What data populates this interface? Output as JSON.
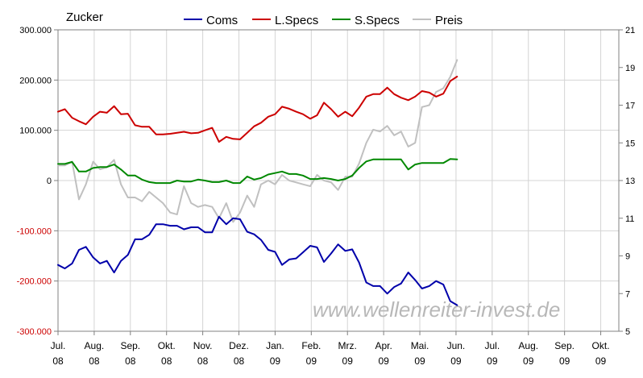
{
  "watermark": "www.wellenreiter-invest.de",
  "chart_data": {
    "type": "line",
    "title": "Zucker",
    "x_ticks": [
      {
        "label": [
          "Jul.",
          "08"
        ],
        "t": 0
      },
      {
        "label": [
          "Aug.",
          "08"
        ],
        "t": 1
      },
      {
        "label": [
          "Sep.",
          "08"
        ],
        "t": 2
      },
      {
        "label": [
          "Okt.",
          "08"
        ],
        "t": 3
      },
      {
        "label": [
          "Nov.",
          "08"
        ],
        "t": 4
      },
      {
        "label": [
          "Dez.",
          "08"
        ],
        "t": 5
      },
      {
        "label": [
          "Jan.",
          "09"
        ],
        "t": 6
      },
      {
        "label": [
          "Feb.",
          "09"
        ],
        "t": 7
      },
      {
        "label": [
          "Mrz.",
          "09"
        ],
        "t": 8
      },
      {
        "label": [
          "Apr.",
          "09"
        ],
        "t": 9
      },
      {
        "label": [
          "Mai.",
          "09"
        ],
        "t": 10
      },
      {
        "label": [
          "Jun.",
          "09"
        ],
        "t": 11
      },
      {
        "label": [
          "Jul.",
          "09"
        ],
        "t": 12
      },
      {
        "label": [
          "Aug.",
          "09"
        ],
        "t": 13
      },
      {
        "label": [
          "Sep.",
          "09"
        ],
        "t": 14
      },
      {
        "label": [
          "Okt.",
          "09"
        ],
        "t": 15
      }
    ],
    "y_left": {
      "ticks": [
        300000,
        200000,
        100000,
        0,
        -100000,
        -200000,
        -300000
      ],
      "tick_labels": [
        "300.000",
        "200.000",
        "100.000",
        "0",
        "-100.000",
        "-200.000",
        "-300.000"
      ],
      "range": [
        -300000,
        300000
      ]
    },
    "y_right": {
      "ticks": [
        21,
        19,
        17,
        15,
        13,
        11,
        9,
        7,
        5
      ],
      "tick_labels": [
        "21",
        "19",
        "17",
        "15",
        "13",
        "11",
        "9",
        "7",
        "5"
      ],
      "range": [
        5,
        21
      ]
    },
    "legend_position": "top",
    "series": [
      {
        "name": "Coms",
        "color": "#0000aa",
        "axis": "left",
        "points": [
          [
            0.0,
            -168000
          ],
          [
            0.19,
            -175000
          ],
          [
            0.39,
            -165000
          ],
          [
            0.58,
            -138000
          ],
          [
            0.77,
            -132000
          ],
          [
            0.97,
            -153000
          ],
          [
            1.16,
            -165000
          ],
          [
            1.35,
            -160000
          ],
          [
            1.55,
            -183000
          ],
          [
            1.74,
            -160000
          ],
          [
            1.93,
            -148000
          ],
          [
            2.13,
            -117000
          ],
          [
            2.32,
            -117000
          ],
          [
            2.52,
            -108000
          ],
          [
            2.71,
            -87000
          ],
          [
            2.9,
            -87000
          ],
          [
            3.1,
            -90000
          ],
          [
            3.29,
            -90000
          ],
          [
            3.48,
            -97000
          ],
          [
            3.68,
            -93000
          ],
          [
            3.87,
            -93000
          ],
          [
            4.06,
            -103000
          ],
          [
            4.26,
            -103000
          ],
          [
            4.45,
            -72000
          ],
          [
            4.65,
            -87000
          ],
          [
            4.84,
            -75000
          ],
          [
            5.03,
            -77000
          ],
          [
            5.23,
            -102000
          ],
          [
            5.42,
            -107000
          ],
          [
            5.61,
            -118000
          ],
          [
            5.81,
            -138000
          ],
          [
            6.0,
            -142000
          ],
          [
            6.19,
            -168000
          ],
          [
            6.39,
            -157000
          ],
          [
            6.58,
            -155000
          ],
          [
            6.77,
            -143000
          ],
          [
            6.97,
            -130000
          ],
          [
            7.16,
            -133000
          ],
          [
            7.35,
            -162000
          ],
          [
            7.55,
            -145000
          ],
          [
            7.74,
            -127000
          ],
          [
            7.94,
            -140000
          ],
          [
            8.13,
            -137000
          ],
          [
            8.32,
            -163000
          ],
          [
            8.52,
            -203000
          ],
          [
            8.71,
            -210000
          ],
          [
            8.9,
            -210000
          ],
          [
            9.1,
            -225000
          ],
          [
            9.29,
            -212000
          ],
          [
            9.48,
            -205000
          ],
          [
            9.68,
            -183000
          ],
          [
            9.87,
            -198000
          ],
          [
            10.06,
            -215000
          ],
          [
            10.26,
            -210000
          ],
          [
            10.45,
            -200000
          ],
          [
            10.65,
            -207000
          ],
          [
            10.84,
            -240000
          ],
          [
            11.03,
            -248000
          ]
        ]
      },
      {
        "name": "L.Specs",
        "color": "#cc0000",
        "axis": "left",
        "points": [
          [
            0.0,
            137000
          ],
          [
            0.19,
            142000
          ],
          [
            0.39,
            125000
          ],
          [
            0.58,
            118000
          ],
          [
            0.77,
            112000
          ],
          [
            0.97,
            127000
          ],
          [
            1.16,
            137000
          ],
          [
            1.35,
            135000
          ],
          [
            1.55,
            148000
          ],
          [
            1.74,
            132000
          ],
          [
            1.93,
            133000
          ],
          [
            2.13,
            110000
          ],
          [
            2.32,
            107000
          ],
          [
            2.52,
            107000
          ],
          [
            2.71,
            92000
          ],
          [
            2.9,
            92000
          ],
          [
            3.1,
            93000
          ],
          [
            3.29,
            95000
          ],
          [
            3.48,
            97000
          ],
          [
            3.68,
            94000
          ],
          [
            3.87,
            95000
          ],
          [
            4.06,
            100000
          ],
          [
            4.26,
            105000
          ],
          [
            4.45,
            77000
          ],
          [
            4.65,
            87000
          ],
          [
            4.84,
            83000
          ],
          [
            5.03,
            82000
          ],
          [
            5.23,
            95000
          ],
          [
            5.42,
            108000
          ],
          [
            5.61,
            115000
          ],
          [
            5.81,
            127000
          ],
          [
            6.0,
            132000
          ],
          [
            6.19,
            147000
          ],
          [
            6.39,
            143000
          ],
          [
            6.58,
            137000
          ],
          [
            6.77,
            132000
          ],
          [
            6.97,
            123000
          ],
          [
            7.16,
            130000
          ],
          [
            7.35,
            155000
          ],
          [
            7.55,
            142000
          ],
          [
            7.74,
            127000
          ],
          [
            7.94,
            137000
          ],
          [
            8.13,
            128000
          ],
          [
            8.32,
            145000
          ],
          [
            8.52,
            167000
          ],
          [
            8.71,
            172000
          ],
          [
            8.9,
            172000
          ],
          [
            9.1,
            185000
          ],
          [
            9.29,
            172000
          ],
          [
            9.48,
            165000
          ],
          [
            9.68,
            160000
          ],
          [
            9.87,
            167000
          ],
          [
            10.06,
            178000
          ],
          [
            10.26,
            175000
          ],
          [
            10.45,
            167000
          ],
          [
            10.65,
            173000
          ],
          [
            10.84,
            198000
          ],
          [
            11.03,
            207000
          ]
        ]
      },
      {
        "name": "S.Specs",
        "color": "#008800",
        "axis": "left",
        "points": [
          [
            0.0,
            33000
          ],
          [
            0.19,
            33000
          ],
          [
            0.39,
            37000
          ],
          [
            0.58,
            18000
          ],
          [
            0.77,
            18000
          ],
          [
            0.97,
            25000
          ],
          [
            1.16,
            27000
          ],
          [
            1.35,
            27000
          ],
          [
            1.55,
            32000
          ],
          [
            1.74,
            22000
          ],
          [
            1.93,
            10000
          ],
          [
            2.13,
            10000
          ],
          [
            2.32,
            2000
          ],
          [
            2.52,
            -3000
          ],
          [
            2.71,
            -5000
          ],
          [
            2.9,
            -5000
          ],
          [
            3.1,
            -5000
          ],
          [
            3.29,
            0
          ],
          [
            3.48,
            -2000
          ],
          [
            3.68,
            -2000
          ],
          [
            3.87,
            2000
          ],
          [
            4.06,
            0
          ],
          [
            4.26,
            -3000
          ],
          [
            4.45,
            -3000
          ],
          [
            4.65,
            0
          ],
          [
            4.84,
            -5000
          ],
          [
            5.03,
            -5000
          ],
          [
            5.23,
            8000
          ],
          [
            5.42,
            2000
          ],
          [
            5.61,
            5000
          ],
          [
            5.81,
            12000
          ],
          [
            6.0,
            15000
          ],
          [
            6.19,
            18000
          ],
          [
            6.39,
            13000
          ],
          [
            6.58,
            13000
          ],
          [
            6.77,
            10000
          ],
          [
            6.97,
            3000
          ],
          [
            7.16,
            3000
          ],
          [
            7.35,
            5000
          ],
          [
            7.55,
            3000
          ],
          [
            7.74,
            0
          ],
          [
            7.94,
            3000
          ],
          [
            8.13,
            10000
          ],
          [
            8.32,
            25000
          ],
          [
            8.52,
            38000
          ],
          [
            8.71,
            42000
          ],
          [
            8.9,
            42000
          ],
          [
            9.1,
            42000
          ],
          [
            9.29,
            42000
          ],
          [
            9.48,
            42000
          ],
          [
            9.68,
            22000
          ],
          [
            9.87,
            32000
          ],
          [
            10.06,
            35000
          ],
          [
            10.26,
            35000
          ],
          [
            10.45,
            35000
          ],
          [
            10.65,
            35000
          ],
          [
            10.84,
            43000
          ],
          [
            11.03,
            42000
          ]
        ]
      },
      {
        "name": "Preis",
        "color": "#c0c0c0",
        "axis": "right",
        "points": [
          [
            0.0,
            13.8
          ],
          [
            0.19,
            13.8
          ],
          [
            0.39,
            14.0
          ],
          [
            0.58,
            12.0
          ],
          [
            0.77,
            12.8
          ],
          [
            0.97,
            14.0
          ],
          [
            1.16,
            13.6
          ],
          [
            1.35,
            13.7
          ],
          [
            1.55,
            14.1
          ],
          [
            1.74,
            12.8
          ],
          [
            1.93,
            12.1
          ],
          [
            2.13,
            12.1
          ],
          [
            2.32,
            11.9
          ],
          [
            2.52,
            12.4
          ],
          [
            2.71,
            12.1
          ],
          [
            2.9,
            11.8
          ],
          [
            3.1,
            11.3
          ],
          [
            3.29,
            11.2
          ],
          [
            3.48,
            12.7
          ],
          [
            3.68,
            11.8
          ],
          [
            3.87,
            11.6
          ],
          [
            4.06,
            11.7
          ],
          [
            4.26,
            11.6
          ],
          [
            4.45,
            11.0
          ],
          [
            4.65,
            11.8
          ],
          [
            4.84,
            10.8
          ],
          [
            5.03,
            11.3
          ],
          [
            5.23,
            12.2
          ],
          [
            5.42,
            11.6
          ],
          [
            5.61,
            12.8
          ],
          [
            5.81,
            13.0
          ],
          [
            6.0,
            12.8
          ],
          [
            6.19,
            13.3
          ],
          [
            6.39,
            13.0
          ],
          [
            6.58,
            12.9
          ],
          [
            6.77,
            12.8
          ],
          [
            6.97,
            12.7
          ],
          [
            7.16,
            13.3
          ],
          [
            7.35,
            13.0
          ],
          [
            7.55,
            12.9
          ],
          [
            7.74,
            12.5
          ],
          [
            7.94,
            13.2
          ],
          [
            8.13,
            13.2
          ],
          [
            8.32,
            13.9
          ],
          [
            8.52,
            15.0
          ],
          [
            8.71,
            15.7
          ],
          [
            8.9,
            15.6
          ],
          [
            9.1,
            15.9
          ],
          [
            9.29,
            15.4
          ],
          [
            9.48,
            15.6
          ],
          [
            9.68,
            14.8
          ],
          [
            9.87,
            15.0
          ],
          [
            10.06,
            16.9
          ],
          [
            10.26,
            17.0
          ],
          [
            10.45,
            17.7
          ],
          [
            10.65,
            17.9
          ],
          [
            10.84,
            18.5
          ],
          [
            11.03,
            19.4
          ]
        ]
      }
    ]
  }
}
